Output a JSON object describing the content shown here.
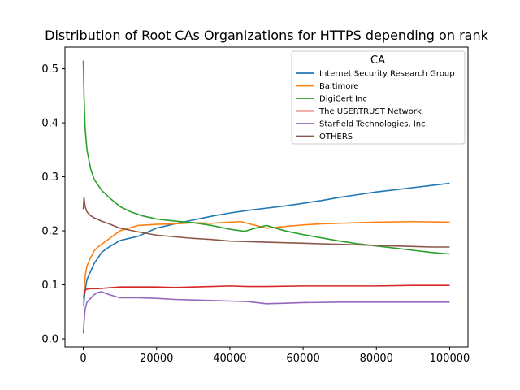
{
  "chart_data": {
    "type": "line",
    "title": "Distribution of Root CAs Organizations for HTTPS depending on rank",
    "xlabel": "",
    "ylabel": "",
    "xlim": [
      -5000,
      105000
    ],
    "ylim": [
      -0.015,
      0.54
    ],
    "xticks": [
      0,
      20000,
      40000,
      60000,
      80000,
      100000
    ],
    "xtick_labels": [
      "0",
      "20000",
      "40000",
      "60000",
      "80000",
      "100000"
    ],
    "yticks": [
      0.0,
      0.1,
      0.2,
      0.3,
      0.4,
      0.5
    ],
    "ytick_labels": [
      "0.0",
      "0.1",
      "0.2",
      "0.3",
      "0.4",
      "0.5"
    ],
    "grid": false,
    "legend": {
      "title": "CA",
      "position": "top-right"
    },
    "series": [
      {
        "name": "Internet Security Research Group",
        "color": "#1f77b4",
        "points": [
          [
            100,
            0.06
          ],
          [
            500,
            0.09
          ],
          [
            1000,
            0.11
          ],
          [
            2000,
            0.125
          ],
          [
            3000,
            0.14
          ],
          [
            4000,
            0.15
          ],
          [
            5000,
            0.16
          ],
          [
            7000,
            0.17
          ],
          [
            10000,
            0.182
          ],
          [
            15000,
            0.19
          ],
          [
            20000,
            0.205
          ],
          [
            25000,
            0.213
          ],
          [
            30000,
            0.22
          ],
          [
            35000,
            0.227
          ],
          [
            40000,
            0.233
          ],
          [
            45000,
            0.238
          ],
          [
            50000,
            0.242
          ],
          [
            55000,
            0.246
          ],
          [
            60000,
            0.251
          ],
          [
            65000,
            0.256
          ],
          [
            70000,
            0.262
          ],
          [
            75000,
            0.267
          ],
          [
            80000,
            0.272
          ],
          [
            85000,
            0.276
          ],
          [
            90000,
            0.28
          ],
          [
            95000,
            0.284
          ],
          [
            100000,
            0.288
          ]
        ]
      },
      {
        "name": "Baltimore",
        "color": "#ff7f0e",
        "points": [
          [
            100,
            0.065
          ],
          [
            300,
            0.1
          ],
          [
            600,
            0.12
          ],
          [
            1000,
            0.135
          ],
          [
            2000,
            0.15
          ],
          [
            3000,
            0.163
          ],
          [
            4000,
            0.17
          ],
          [
            5000,
            0.175
          ],
          [
            7000,
            0.185
          ],
          [
            10000,
            0.2
          ],
          [
            15000,
            0.21
          ],
          [
            20000,
            0.212
          ],
          [
            25000,
            0.213
          ],
          [
            30000,
            0.215
          ],
          [
            35000,
            0.214
          ],
          [
            40000,
            0.216
          ],
          [
            43000,
            0.217
          ],
          [
            47000,
            0.21
          ],
          [
            50000,
            0.205
          ],
          [
            55000,
            0.208
          ],
          [
            60000,
            0.211
          ],
          [
            65000,
            0.213
          ],
          [
            70000,
            0.214
          ],
          [
            80000,
            0.216
          ],
          [
            90000,
            0.217
          ],
          [
            100000,
            0.216
          ]
        ]
      },
      {
        "name": "DigiCert Inc",
        "color": "#2ca02c",
        "points": [
          [
            0,
            0.515
          ],
          [
            200,
            0.45
          ],
          [
            500,
            0.39
          ],
          [
            1000,
            0.35
          ],
          [
            2000,
            0.315
          ],
          [
            3000,
            0.295
          ],
          [
            4000,
            0.285
          ],
          [
            5000,
            0.275
          ],
          [
            7000,
            0.262
          ],
          [
            10000,
            0.245
          ],
          [
            13000,
            0.235
          ],
          [
            16000,
            0.228
          ],
          [
            20000,
            0.222
          ],
          [
            25000,
            0.218
          ],
          [
            30000,
            0.215
          ],
          [
            35000,
            0.21
          ],
          [
            40000,
            0.203
          ],
          [
            44000,
            0.199
          ],
          [
            47000,
            0.205
          ],
          [
            50000,
            0.21
          ],
          [
            55000,
            0.2
          ],
          [
            60000,
            0.193
          ],
          [
            65000,
            0.187
          ],
          [
            70000,
            0.181
          ],
          [
            75000,
            0.176
          ],
          [
            80000,
            0.172
          ],
          [
            85000,
            0.168
          ],
          [
            90000,
            0.164
          ],
          [
            95000,
            0.16
          ],
          [
            100000,
            0.157
          ]
        ]
      },
      {
        "name": "The USERTRUST Network",
        "color": "#d62728",
        "points": [
          [
            100,
            0.075
          ],
          [
            300,
            0.085
          ],
          [
            600,
            0.09
          ],
          [
            1000,
            0.092
          ],
          [
            2000,
            0.093
          ],
          [
            4000,
            0.093
          ],
          [
            6000,
            0.094
          ],
          [
            10000,
            0.096
          ],
          [
            15000,
            0.096
          ],
          [
            20000,
            0.096
          ],
          [
            25000,
            0.095
          ],
          [
            30000,
            0.096
          ],
          [
            35000,
            0.097
          ],
          [
            40000,
            0.098
          ],
          [
            45000,
            0.097
          ],
          [
            50000,
            0.097
          ],
          [
            60000,
            0.098
          ],
          [
            70000,
            0.098
          ],
          [
            80000,
            0.098
          ],
          [
            90000,
            0.099
          ],
          [
            100000,
            0.099
          ]
        ]
      },
      {
        "name": "Starfield Technologies, Inc.",
        "color": "#9467bd",
        "points": [
          [
            0,
            0.01
          ],
          [
            200,
            0.03
          ],
          [
            500,
            0.055
          ],
          [
            1000,
            0.068
          ],
          [
            2000,
            0.075
          ],
          [
            3000,
            0.082
          ],
          [
            4000,
            0.086
          ],
          [
            5000,
            0.087
          ],
          [
            7000,
            0.082
          ],
          [
            10000,
            0.076
          ],
          [
            15000,
            0.076
          ],
          [
            20000,
            0.075
          ],
          [
            25000,
            0.073
          ],
          [
            30000,
            0.072
          ],
          [
            35000,
            0.071
          ],
          [
            40000,
            0.07
          ],
          [
            45000,
            0.069
          ],
          [
            50000,
            0.065
          ],
          [
            55000,
            0.066
          ],
          [
            60000,
            0.067
          ],
          [
            70000,
            0.068
          ],
          [
            80000,
            0.068
          ],
          [
            90000,
            0.068
          ],
          [
            100000,
            0.068
          ]
        ]
      },
      {
        "name": "OTHERS",
        "color": "#8c564b",
        "points": [
          [
            0,
            0.24
          ],
          [
            200,
            0.262
          ],
          [
            500,
            0.245
          ],
          [
            1000,
            0.235
          ],
          [
            2000,
            0.228
          ],
          [
            3000,
            0.224
          ],
          [
            5000,
            0.218
          ],
          [
            7000,
            0.213
          ],
          [
            10000,
            0.205
          ],
          [
            15000,
            0.198
          ],
          [
            20000,
            0.192
          ],
          [
            25000,
            0.189
          ],
          [
            30000,
            0.186
          ],
          [
            35000,
            0.184
          ],
          [
            40000,
            0.181
          ],
          [
            45000,
            0.18
          ],
          [
            50000,
            0.179
          ],
          [
            55000,
            0.178
          ],
          [
            60000,
            0.177
          ],
          [
            65000,
            0.176
          ],
          [
            70000,
            0.175
          ],
          [
            75000,
            0.174
          ],
          [
            80000,
            0.173
          ],
          [
            85000,
            0.172
          ],
          [
            90000,
            0.171
          ],
          [
            95000,
            0.17
          ],
          [
            100000,
            0.17
          ]
        ]
      }
    ]
  }
}
